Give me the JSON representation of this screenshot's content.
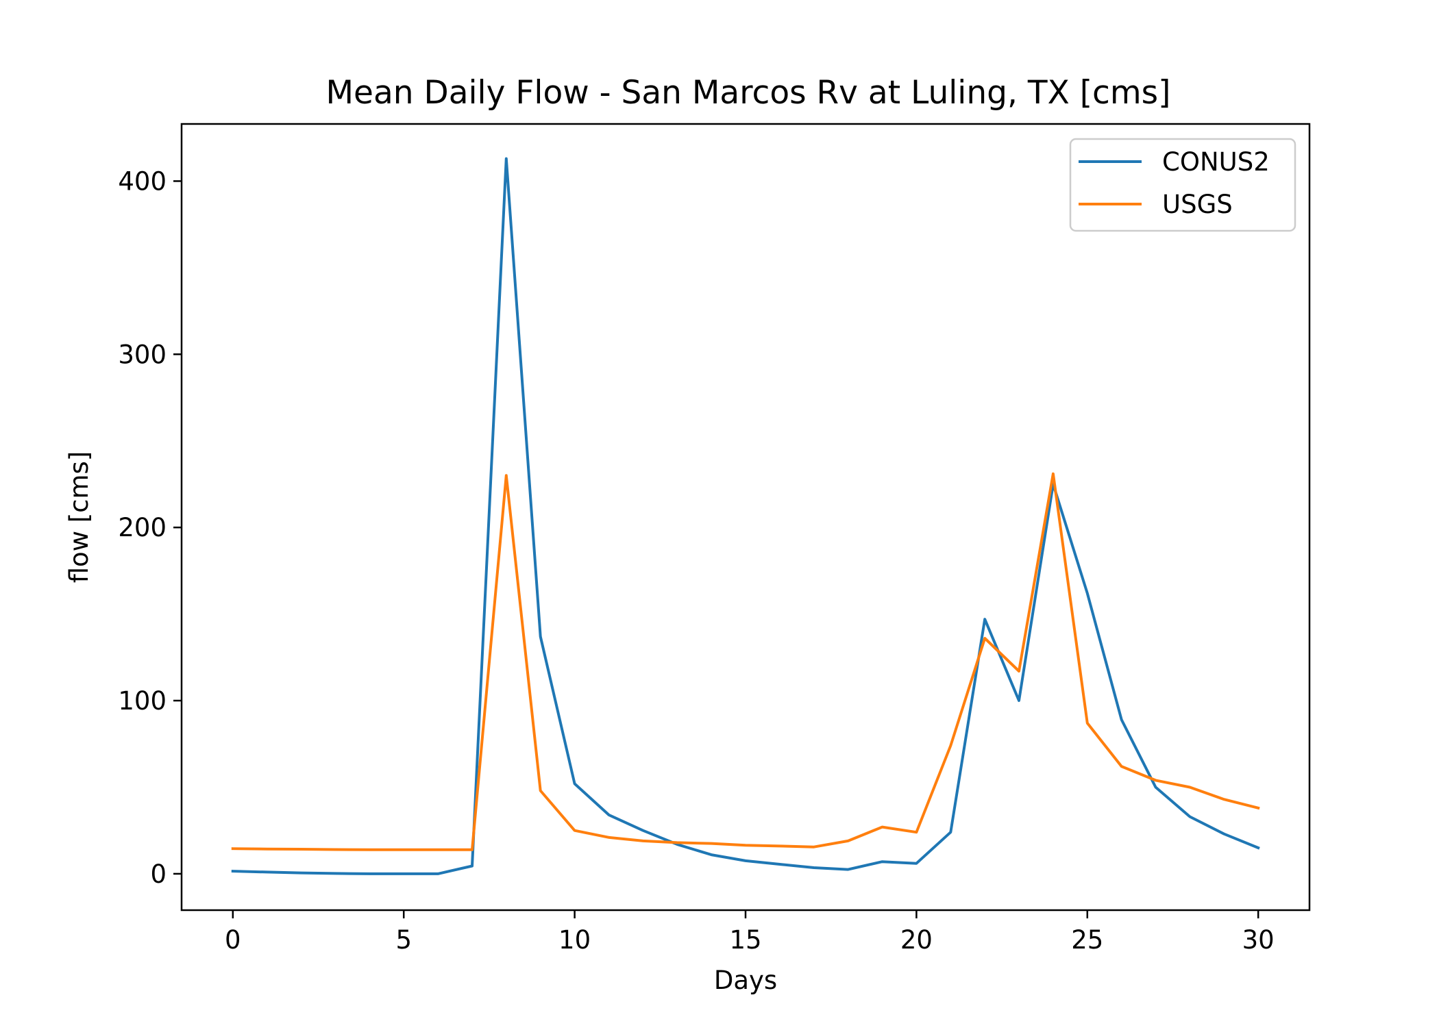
{
  "chart_data": {
    "type": "line",
    "title": "Mean Daily Flow - San Marcos Rv at Luling, TX [cms]",
    "xlabel": "Days",
    "ylabel": "flow [cms]",
    "xlim": [
      -1.5,
      31.5
    ],
    "ylim": [
      -21,
      433
    ],
    "x_ticks": [
      0,
      5,
      10,
      15,
      20,
      25,
      30
    ],
    "y_ticks": [
      0,
      100,
      200,
      300,
      400
    ],
    "x_tick_labels": [
      "0",
      "5",
      "10",
      "15",
      "20",
      "25",
      "30"
    ],
    "y_tick_labels": [
      "0",
      "100",
      "200",
      "300",
      "400"
    ],
    "grid": false,
    "legend_position": "upper right",
    "x": [
      0,
      1,
      2,
      3,
      4,
      5,
      6,
      7,
      8,
      9,
      10,
      11,
      12,
      13,
      14,
      15,
      16,
      17,
      18,
      19,
      20,
      21,
      22,
      23,
      24,
      25,
      26,
      27,
      28,
      29,
      30
    ],
    "series": [
      {
        "name": "CONUS2",
        "color": "#1f77b4",
        "values": [
          1.5,
          1.0,
          0.5,
          0.2,
          0.0,
          0.0,
          0.0,
          4.5,
          413,
          137,
          52,
          34,
          25,
          17,
          11,
          7.5,
          5.5,
          3.5,
          2.5,
          7,
          6,
          24,
          147,
          100,
          225,
          162,
          89,
          50,
          33,
          23,
          15
        ]
      },
      {
        "name": "USGS",
        "color": "#ff7f0e",
        "values": [
          14.5,
          14.3,
          14.2,
          14.0,
          13.9,
          13.9,
          13.9,
          13.9,
          230,
          48,
          25,
          21,
          19,
          18,
          17.5,
          16.5,
          16,
          15.5,
          19,
          27,
          24,
          74,
          136,
          117,
          231,
          87,
          62,
          54,
          50,
          43,
          38
        ]
      }
    ]
  }
}
